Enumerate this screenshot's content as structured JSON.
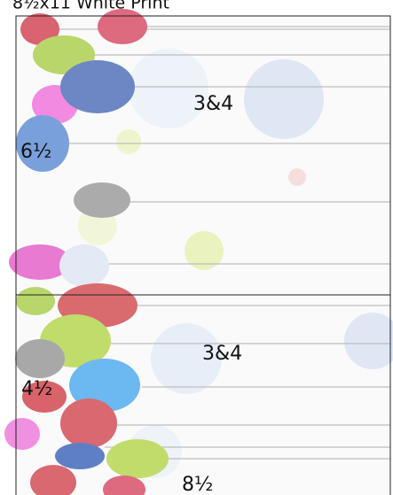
{
  "header": {
    "title": "8½x11 White Print"
  },
  "panels": [
    {
      "labels": [
        "3&4",
        "6½"
      ]
    },
    {
      "labels": [
        "3&4",
        "4½",
        "8½"
      ]
    }
  ]
}
